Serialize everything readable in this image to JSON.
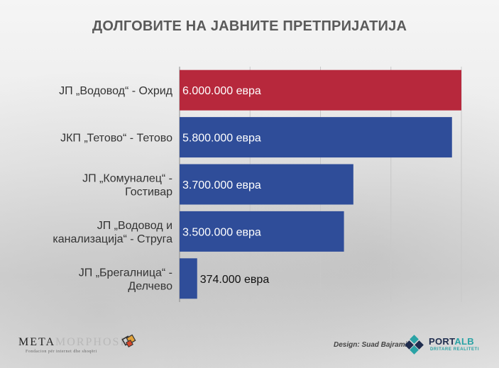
{
  "title": "ДОЛГОВИТЕ НА ЈАВНИТЕ ПРЕТПРИЈАТИЈА",
  "chart_data": {
    "type": "bar",
    "orientation": "horizontal",
    "title": "ДОЛГОВИТЕ НА ЈАВНИТЕ ПРЕТПРИЈАТИЈА",
    "xlabel": "",
    "ylabel": "",
    "grid": true,
    "xlim": [
      0,
      6000000
    ],
    "categories": [
      [
        "ЈП „Водовод“ - Охрид"
      ],
      [
        "ЈКП „Тетово“ - Тетово"
      ],
      [
        "ЈП „Комуналец“ -",
        "Гостивар"
      ],
      [
        "ЈП „Водовод и",
        "канализација“ - Струга"
      ],
      [
        "ЈП „Брегалница“ -",
        "Делчево"
      ]
    ],
    "values": [
      6000000,
      5800000,
      3700000,
      3500000,
      374000
    ],
    "value_labels": [
      "6.000.000 евра",
      "5.800.000 евра",
      "3.700.000 евра",
      "3.500.000 евра",
      "374.000 евра"
    ],
    "bar_colors": [
      "#b7283c",
      "#2f4d99",
      "#2f4d99",
      "#2f4d99",
      "#2f4d99"
    ]
  },
  "footer": {
    "meta_dark": "META",
    "meta_light": "MORPHOSIS",
    "meta_sub": "Fondacion për internet dhe shoqëri",
    "design_credit": "Design: Suad Bajrami",
    "portalb_main": "PORT",
    "portalb_accent": "ALB",
    "portalb_sub": "DRITARE REALITETI"
  }
}
